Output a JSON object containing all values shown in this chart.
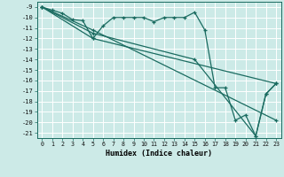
{
  "title": "",
  "xlabel": "Humidex (Indice chaleur)",
  "bg_color": "#cceae7",
  "grid_color": "#ffffff",
  "line_color": "#1a6b60",
  "xlim": [
    -0.5,
    23.5
  ],
  "ylim": [
    -21.5,
    -8.5
  ],
  "xticks": [
    0,
    1,
    2,
    3,
    4,
    5,
    6,
    7,
    8,
    9,
    10,
    11,
    12,
    13,
    14,
    15,
    16,
    17,
    18,
    19,
    20,
    21,
    22,
    23
  ],
  "yticks": [
    -9,
    -10,
    -11,
    -12,
    -13,
    -14,
    -15,
    -16,
    -17,
    -18,
    -19,
    -20,
    -21
  ],
  "series_main": [
    [
      0,
      -9.0
    ],
    [
      1,
      -9.3
    ],
    [
      2,
      -9.6
    ],
    [
      3,
      -10.2
    ],
    [
      4,
      -10.3
    ],
    [
      5,
      -12.0
    ],
    [
      6,
      -10.8
    ],
    [
      7,
      -10.0
    ],
    [
      8,
      -10.0
    ],
    [
      9,
      -10.0
    ],
    [
      10,
      -10.0
    ],
    [
      11,
      -10.4
    ],
    [
      12,
      -10.0
    ],
    [
      13,
      -10.0
    ],
    [
      14,
      -10.0
    ],
    [
      15,
      -9.5
    ],
    [
      16,
      -11.2
    ],
    [
      17,
      -16.7
    ],
    [
      18,
      -16.7
    ],
    [
      19,
      -19.8
    ],
    [
      20,
      -19.3
    ],
    [
      21,
      -21.3
    ],
    [
      22,
      -17.3
    ],
    [
      23,
      -16.3
    ]
  ],
  "series_line2": [
    [
      0,
      -9.0
    ],
    [
      5,
      -12.0
    ],
    [
      23,
      -16.3
    ]
  ],
  "series_line3": [
    [
      0,
      -9.0
    ],
    [
      5,
      -11.2
    ],
    [
      23,
      -19.8
    ]
  ],
  "series_line4": [
    [
      0,
      -9.0
    ],
    [
      5,
      -11.5
    ],
    [
      15,
      -14.0
    ],
    [
      21,
      -21.3
    ],
    [
      22,
      -17.3
    ],
    [
      23,
      -16.3
    ]
  ]
}
